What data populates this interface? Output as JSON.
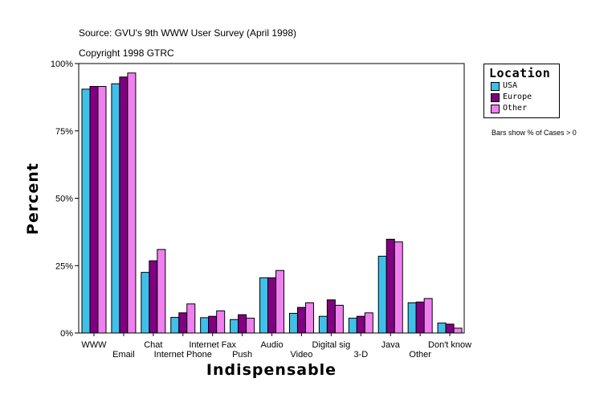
{
  "source_line": "Source: GVU's 9th WWW User Survey (April 1998)",
  "copyright_line": "Copyright 1998 GTRC",
  "note": "Bars show % of Cases > 0",
  "colors": {
    "usa": "#40c0e8",
    "europe": "#800080",
    "other": "#f080f0"
  },
  "chart_data": {
    "type": "bar",
    "title": "",
    "xlabel": "Indispensable",
    "ylabel": "Percent",
    "ylim": [
      0,
      100
    ],
    "yticks": [
      "0%",
      "25%",
      "50%",
      "75%",
      "100%"
    ],
    "categories": [
      "WWW",
      "Email",
      "Chat",
      "Internet Phone",
      "Internet Fax",
      "Push",
      "Audio",
      "Video",
      "Digital sig",
      "3-D",
      "Java",
      "Other",
      "Don't know"
    ],
    "series": [
      {
        "name": "USA",
        "values": [
          90.5,
          92.5,
          22.5,
          5.8,
          5.7,
          5.0,
          20.5,
          7.3,
          6.2,
          5.5,
          28.5,
          11.2,
          3.7
        ]
      },
      {
        "name": "Europe",
        "values": [
          91.5,
          95.0,
          26.8,
          7.5,
          6.2,
          6.8,
          20.5,
          9.5,
          12.3,
          6.2,
          34.8,
          11.5,
          3.3
        ]
      },
      {
        "name": "Other",
        "values": [
          91.5,
          96.5,
          31.0,
          10.8,
          8.2,
          5.5,
          23.2,
          11.2,
          10.3,
          7.5,
          33.8,
          12.8,
          1.8
        ]
      }
    ],
    "legend": {
      "title": "Location",
      "placement": "right"
    },
    "grid": false
  }
}
